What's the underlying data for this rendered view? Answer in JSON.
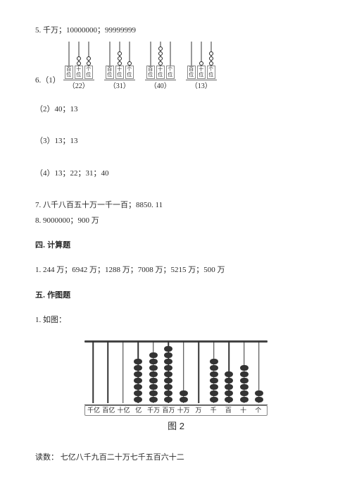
{
  "item5": "5. 千万；10000000；99999999",
  "item6_prefix": "6.（1）",
  "mini_abaci": [
    {
      "beads": [
        0,
        2,
        2
      ],
      "labels": [
        "百位",
        "十位",
        "个位"
      ],
      "caption": "（22）"
    },
    {
      "beads": [
        0,
        3,
        1
      ],
      "labels": [
        "百位",
        "十位",
        "个位"
      ],
      "caption": "（31）"
    },
    {
      "beads": [
        0,
        4,
        0
      ],
      "labels": [
        "百位",
        "十位",
        "个位"
      ],
      "caption": "（40）"
    },
    {
      "beads": [
        0,
        1,
        3
      ],
      "labels": [
        "百位",
        "十位",
        "个位"
      ],
      "caption": "（13）"
    }
  ],
  "item6_2": "（2）40；13",
  "item6_3": "（3）13；13",
  "item6_4": "（4）13；22；31；40",
  "item7": "7. 八千八百五十万一千一百；8850. 11",
  "item8": "8. 9000000；900 万",
  "sec4_title": "四. 计算题",
  "sec4_1": "1. 244 万；6942 万；1288 万；7008 万；5215 万；500 万",
  "sec5_title": "五. 作图题",
  "sec5_1": "1. 如图：",
  "big_abacus": {
    "beads": [
      0,
      0,
      0,
      7,
      8,
      9,
      2,
      0,
      7,
      5,
      6,
      2
    ],
    "labels": [
      "千亿",
      "百亿",
      "十亿",
      "亿",
      "千万",
      "百万",
      "十万",
      "万",
      "千",
      "百",
      "十",
      "个"
    ],
    "caption": "图 2"
  },
  "reading": "读数：  七亿八千九百二十万七千五百六十二",
  "colors": {
    "text": "#2a2a2a",
    "bead_fill": "#333333",
    "border": "#888888"
  }
}
